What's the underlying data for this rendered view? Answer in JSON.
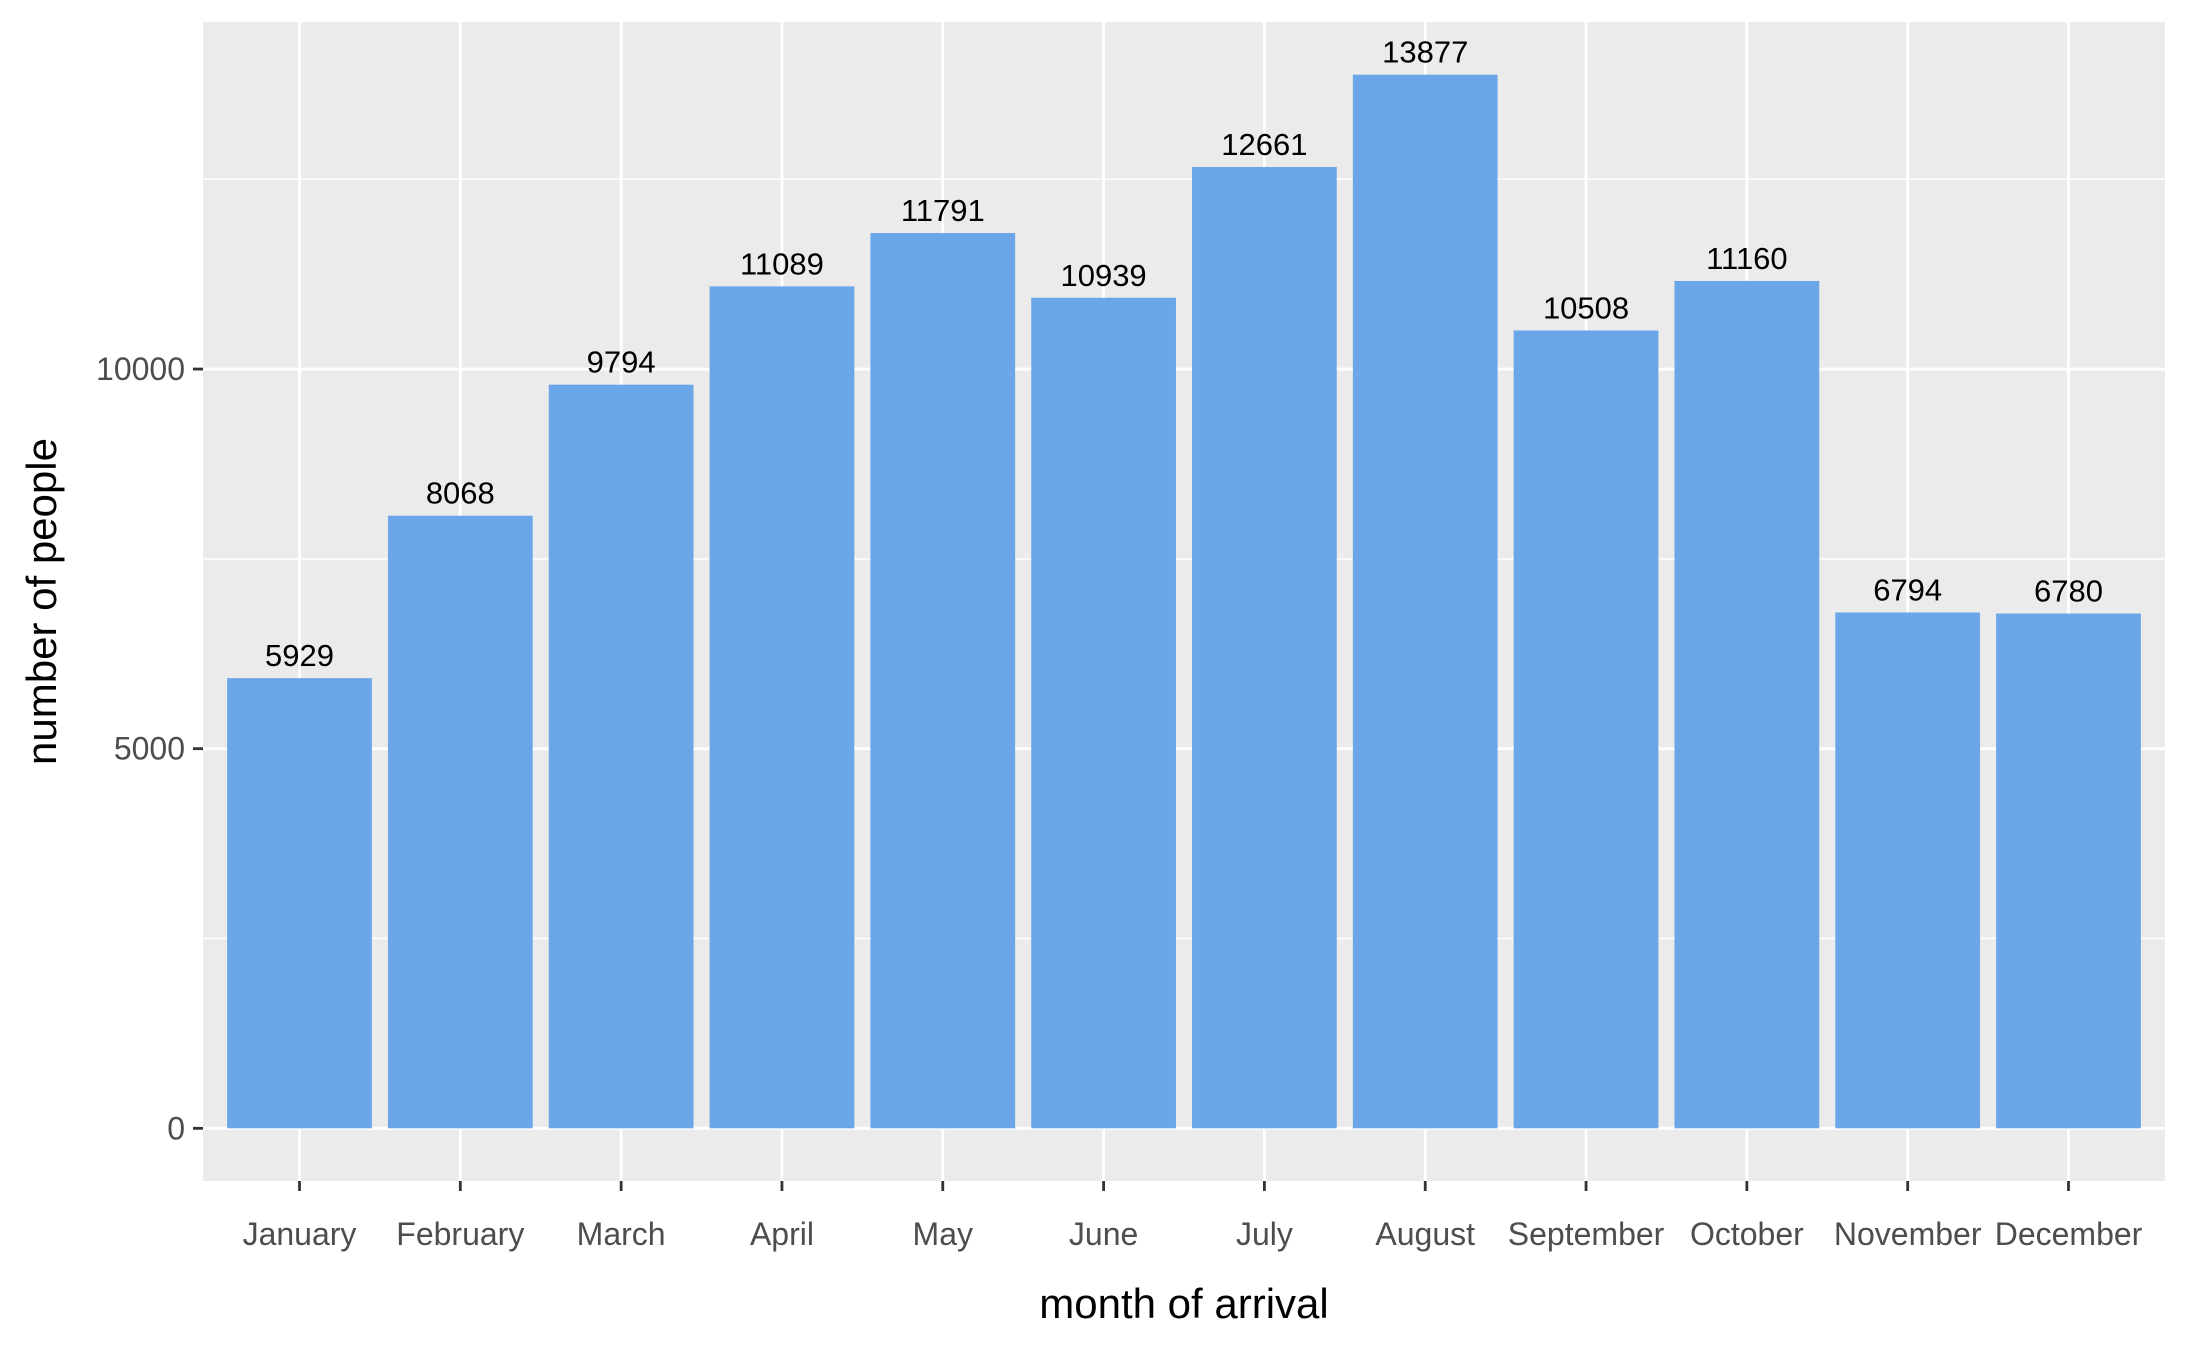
{
  "chart_data": {
    "type": "bar",
    "title": "",
    "xlabel": "month of arrival",
    "ylabel": "number of people",
    "categories": [
      "January",
      "February",
      "March",
      "April",
      "May",
      "June",
      "July",
      "August",
      "September",
      "October",
      "November",
      "December"
    ],
    "values": [
      5929,
      8068,
      9794,
      11089,
      11791,
      10939,
      12661,
      13877,
      10508,
      11160,
      6794,
      6780
    ],
    "data_labels": [
      "5929",
      "8068",
      "9794",
      "11089",
      "11791",
      "10939",
      "12661",
      "13877",
      "10508",
      "11160",
      "6794",
      "6780"
    ],
    "y_ticks": [
      0,
      5000,
      10000
    ],
    "y_tick_labels": [
      "0",
      "5000",
      "10000"
    ],
    "ylim": [
      -693.85,
      14570.85
    ],
    "grid": true,
    "legend": "none"
  },
  "colors": {
    "bar": "#6aa6e8",
    "panel": "#ebebeb",
    "grid": "#ffffff",
    "tick_text": "#4d4d4d",
    "axis_text": "#000000",
    "tick_mark": "#333333"
  }
}
